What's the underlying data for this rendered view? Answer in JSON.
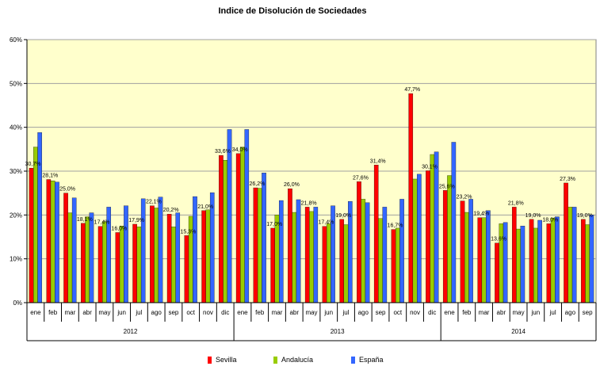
{
  "chart_data": {
    "type": "bar",
    "title": "Indice de Disolución de Sociedades",
    "ylim": [
      0,
      60
    ],
    "yticks": [
      "0%",
      "10%",
      "20%",
      "30%",
      "40%",
      "50%",
      "60%"
    ],
    "grid": true,
    "legend_position": "bottom",
    "background": "#ffffcc",
    "categories": [
      "ene",
      "feb",
      "mar",
      "abr",
      "may",
      "jun",
      "jul",
      "ago",
      "sep",
      "oct",
      "nov",
      "dic",
      "ene",
      "feb",
      "mar",
      "abr",
      "may",
      "jun",
      "jul",
      "ago",
      "sep",
      "oct",
      "nov",
      "dic",
      "ene",
      "feb",
      "mar",
      "abr",
      "may",
      "jun",
      "jul",
      "ago",
      "sep"
    ],
    "groups": [
      {
        "label": "2012",
        "count": 12
      },
      {
        "label": "2013",
        "count": 12
      },
      {
        "label": "2014",
        "count": 9
      }
    ],
    "series": [
      {
        "name": "Sevilla",
        "color": "#ff0000",
        "values": [
          30.7,
          28.1,
          25.0,
          18.1,
          17.4,
          16.0,
          17.9,
          22.1,
          20.2,
          15.3,
          21.0,
          33.6,
          34.0,
          26.2,
          17.0,
          26.0,
          21.8,
          17.4,
          19.0,
          27.6,
          31.4,
          16.7,
          47.7,
          30.1,
          25.6,
          23.2,
          19.4,
          13.6,
          21.8,
          19.0,
          18.0,
          27.3,
          19.0
        ]
      },
      {
        "name": "Andalucía",
        "color": "#99cc00",
        "values": [
          35.5,
          27.8,
          20.5,
          19.6,
          18.5,
          17.5,
          17.3,
          21.6,
          17.3,
          19.7,
          21.2,
          32.5,
          35.5,
          26.1,
          20.0,
          20.6,
          20.8,
          18.0,
          17.8,
          23.6,
          19.2,
          17.0,
          28.2,
          33.8,
          29.0,
          20.6,
          19.4,
          18.0,
          16.8,
          17.0,
          19.3,
          21.8,
          17.8
        ]
      },
      {
        "name": "España",
        "color": "#3366ff",
        "values": [
          38.8,
          27.5,
          23.9,
          20.5,
          21.8,
          22.1,
          23.7,
          24.1,
          20.5,
          24.2,
          25.1,
          39.5,
          39.5,
          29.6,
          23.3,
          23.5,
          21.8,
          22.1,
          23.1,
          22.8,
          21.8,
          23.6,
          29.3,
          34.4,
          36.6,
          23.6,
          21.0,
          18.3,
          17.5,
          18.8,
          19.6,
          21.8,
          20.0
        ]
      }
    ],
    "data_labels": [
      "30,7%",
      "28,1%",
      "25,0%",
      "18,1%",
      "17,4%",
      "16,0%",
      "17,9%",
      "22,1%",
      "20,2%",
      "15,3%",
      "21,0%",
      "33,6%",
      "34,0%",
      "26,2%",
      "17,0%",
      "26,0%",
      "21,8%",
      "17,4%",
      "19,0%",
      "27,6%",
      "31,4%",
      "16,7%",
      "47,7%",
      "30,1%",
      "25,6%",
      "23,2%",
      "19,4%",
      "13,6%",
      "21,8%",
      "19,0%",
      "18,0%",
      "27,3%",
      "19,0%"
    ]
  }
}
